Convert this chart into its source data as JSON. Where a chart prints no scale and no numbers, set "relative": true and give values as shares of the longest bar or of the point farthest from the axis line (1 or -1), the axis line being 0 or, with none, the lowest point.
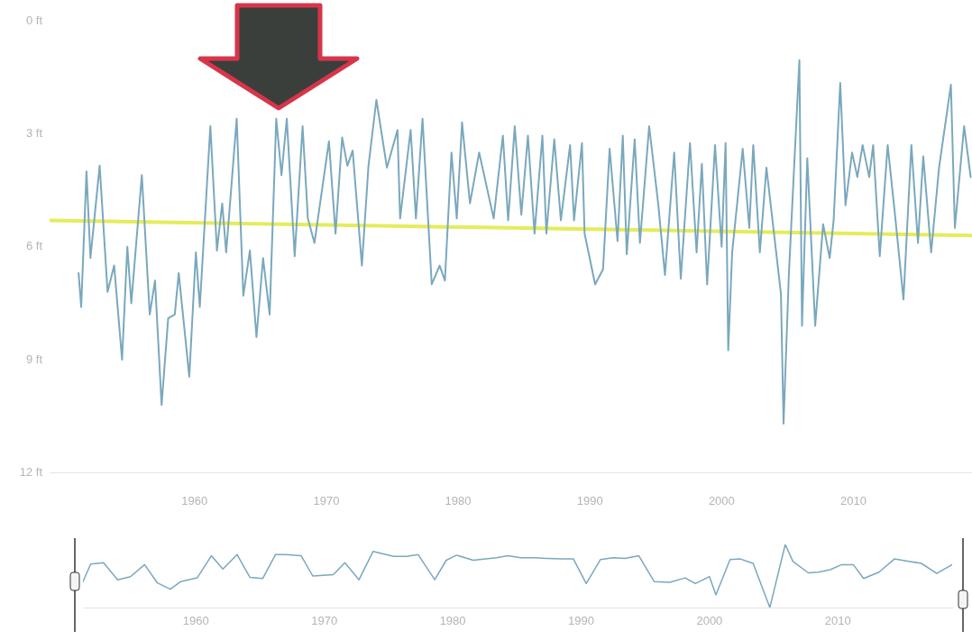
{
  "chart_data": [
    {
      "type": "line",
      "xlim": [
        1949,
        2019
      ],
      "xticks": [
        1960,
        1970,
        1980,
        1990,
        2000,
        2010
      ],
      "ylim": [
        12,
        0
      ],
      "yticks": [
        {
          "value": 0,
          "label": "0 ft"
        },
        {
          "value": 3,
          "label": "3 ft"
        },
        {
          "value": 6,
          "label": "6 ft"
        },
        {
          "value": 9,
          "label": "9 ft"
        },
        {
          "value": 12,
          "label": "12 ft"
        }
      ],
      "grid": false,
      "legend": false,
      "marker": "none",
      "line_style": "solid",
      "series": [
        {
          "color": "#7aa8bd",
          "x": [
            1951.2,
            1951.4,
            1951.8,
            1952.1,
            1952.8,
            1953.4,
            1953.9,
            1954.5,
            1954.9,
            1955.2,
            1956.0,
            1956.6,
            1957.0,
            1957.5,
            1958.0,
            1958.5,
            1958.8,
            1959.6,
            1960.1,
            1960.4,
            1961.2,
            1961.7,
            1962.1,
            1962.4,
            1963.2,
            1963.7,
            1964.2,
            1964.7,
            1965.2,
            1965.7,
            1966.2,
            1966.6,
            1967.0,
            1967.6,
            1968.2,
            1968.6,
            1969.1,
            1970.2,
            1970.7,
            1971.2,
            1971.6,
            1972.0,
            1972.7,
            1973.2,
            1973.8,
            1974.6,
            1975.4,
            1975.6,
            1976.4,
            1976.8,
            1977.3,
            1978.0,
            1978.6,
            1979.0,
            1979.5,
            1979.9,
            1980.3,
            1980.9,
            1981.6,
            1982.7,
            1983.4,
            1983.8,
            1984.3,
            1984.8,
            1985.3,
            1985.8,
            1986.4,
            1986.7,
            1987.3,
            1987.8,
            1988.5,
            1988.8,
            1989.4,
            1989.6,
            1990.4,
            1991.0,
            1991.5,
            1992.1,
            1992.5,
            1992.8,
            1993.4,
            1993.8,
            1994.5,
            1995.2,
            1995.7,
            1996.4,
            1996.9,
            1997.6,
            1998.1,
            1998.5,
            1998.9,
            1999.5,
            2000.0,
            2000.3,
            2000.5,
            2000.8,
            2001.6,
            2002.1,
            2002.4,
            2002.9,
            2003.4,
            2004.5,
            2004.7,
            2005.1,
            2005.9,
            2006.1,
            2006.5,
            2007.1,
            2007.7,
            2008.2,
            2008.5,
            2009.0,
            2009.4,
            2009.9,
            2010.3,
            2010.7,
            2011.2,
            2011.5,
            2012.0,
            2012.6,
            2013.2,
            2013.8,
            2014.4,
            2014.9,
            2015.3,
            2015.9,
            2016.5,
            2017.4,
            2017.7,
            2018.4,
            2018.9
          ],
          "values": [
            6.7,
            7.6,
            4.0,
            6.3,
            3.85,
            7.2,
            6.5,
            9.0,
            6.0,
            7.5,
            4.1,
            7.8,
            6.9,
            10.2,
            7.9,
            7.8,
            6.7,
            9.45,
            6.15,
            7.6,
            2.8,
            6.1,
            4.85,
            6.15,
            2.6,
            7.3,
            6.1,
            8.4,
            6.3,
            7.8,
            2.6,
            4.1,
            2.6,
            6.25,
            2.8,
            5.25,
            5.9,
            3.2,
            5.65,
            3.1,
            3.85,
            3.45,
            6.5,
            3.85,
            2.1,
            3.9,
            2.9,
            5.25,
            2.9,
            5.25,
            2.6,
            7.0,
            6.5,
            6.9,
            3.5,
            5.25,
            2.7,
            4.85,
            3.5,
            5.25,
            3.05,
            5.3,
            2.8,
            5.15,
            3.05,
            5.65,
            3.05,
            5.65,
            3.15,
            5.3,
            3.3,
            5.3,
            3.25,
            5.65,
            7.0,
            6.6,
            3.4,
            5.85,
            3.05,
            6.2,
            3.15,
            5.9,
            2.8,
            4.9,
            6.75,
            3.5,
            6.85,
            3.25,
            6.15,
            3.8,
            7.0,
            3.3,
            6.0,
            3.25,
            8.75,
            6.15,
            3.4,
            5.5,
            3.3,
            6.15,
            3.9,
            7.25,
            10.7,
            6.75,
            1.05,
            8.1,
            3.65,
            8.1,
            5.4,
            6.3,
            5.3,
            1.65,
            4.9,
            3.5,
            4.15,
            3.3,
            4.15,
            3.3,
            6.25,
            3.3,
            5.3,
            7.4,
            3.3,
            5.9,
            3.6,
            6.15,
            3.9,
            1.7,
            5.5,
            2.8,
            4.15
          ]
        },
        {
          "type": "line",
          "color": "#e4ec5c",
          "x": [
            1949,
            2019
          ],
          "values": [
            5.3,
            5.7
          ]
        }
      ]
    },
    {
      "type": "line",
      "relative": true,
      "xlim": [
        1951.2,
        2018.9
      ],
      "xticks": [
        1960,
        1970,
        1980,
        1990,
        2000,
        2010
      ],
      "grid": false,
      "legend": false,
      "marker": "none",
      "line_style": "solid",
      "series": [
        {
          "color": "#7aa8bd",
          "x": [
            1951.2,
            1951.8,
            1952.8,
            1953.9,
            1954.9,
            1956.0,
            1957.0,
            1958.0,
            1958.8,
            1960.1,
            1961.2,
            1962.1,
            1963.2,
            1964.2,
            1965.2,
            1966.2,
            1967.0,
            1968.2,
            1969.1,
            1970.7,
            1971.6,
            1972.7,
            1973.8,
            1975.4,
            1976.4,
            1977.3,
            1978.6,
            1979.5,
            1980.3,
            1981.6,
            1983.4,
            1984.3,
            1985.3,
            1986.4,
            1987.3,
            1988.5,
            1989.4,
            1990.4,
            1991.5,
            1992.5,
            1993.4,
            1994.5,
            1995.7,
            1996.9,
            1998.1,
            1998.9,
            2000.0,
            2000.5,
            2001.6,
            2002.4,
            2003.4,
            2004.7,
            2005.9,
            2006.5,
            2007.7,
            2008.5,
            2009.4,
            2010.3,
            2011.2,
            2012.0,
            2013.2,
            2014.4,
            2015.3,
            2016.5,
            2017.7,
            2018.9
          ],
          "values": [
            0.41,
            0.69,
            0.71,
            0.44,
            0.49,
            0.68,
            0.39,
            0.29,
            0.41,
            0.47,
            0.82,
            0.61,
            0.84,
            0.48,
            0.46,
            0.84,
            0.84,
            0.82,
            0.5,
            0.52,
            0.71,
            0.44,
            0.89,
            0.81,
            0.81,
            0.84,
            0.44,
            0.75,
            0.83,
            0.75,
            0.79,
            0.82,
            0.79,
            0.79,
            0.78,
            0.77,
            0.77,
            0.38,
            0.76,
            0.79,
            0.78,
            0.82,
            0.41,
            0.4,
            0.47,
            0.38,
            0.49,
            0.2,
            0.76,
            0.77,
            0.7,
            0,
            1,
            0.73,
            0.55,
            0.56,
            0.6,
            0.68,
            0.68,
            0.46,
            0.56,
            0.77,
            0.74,
            0.7,
            0.54,
            0.68
          ]
        }
      ]
    }
  ]
}
